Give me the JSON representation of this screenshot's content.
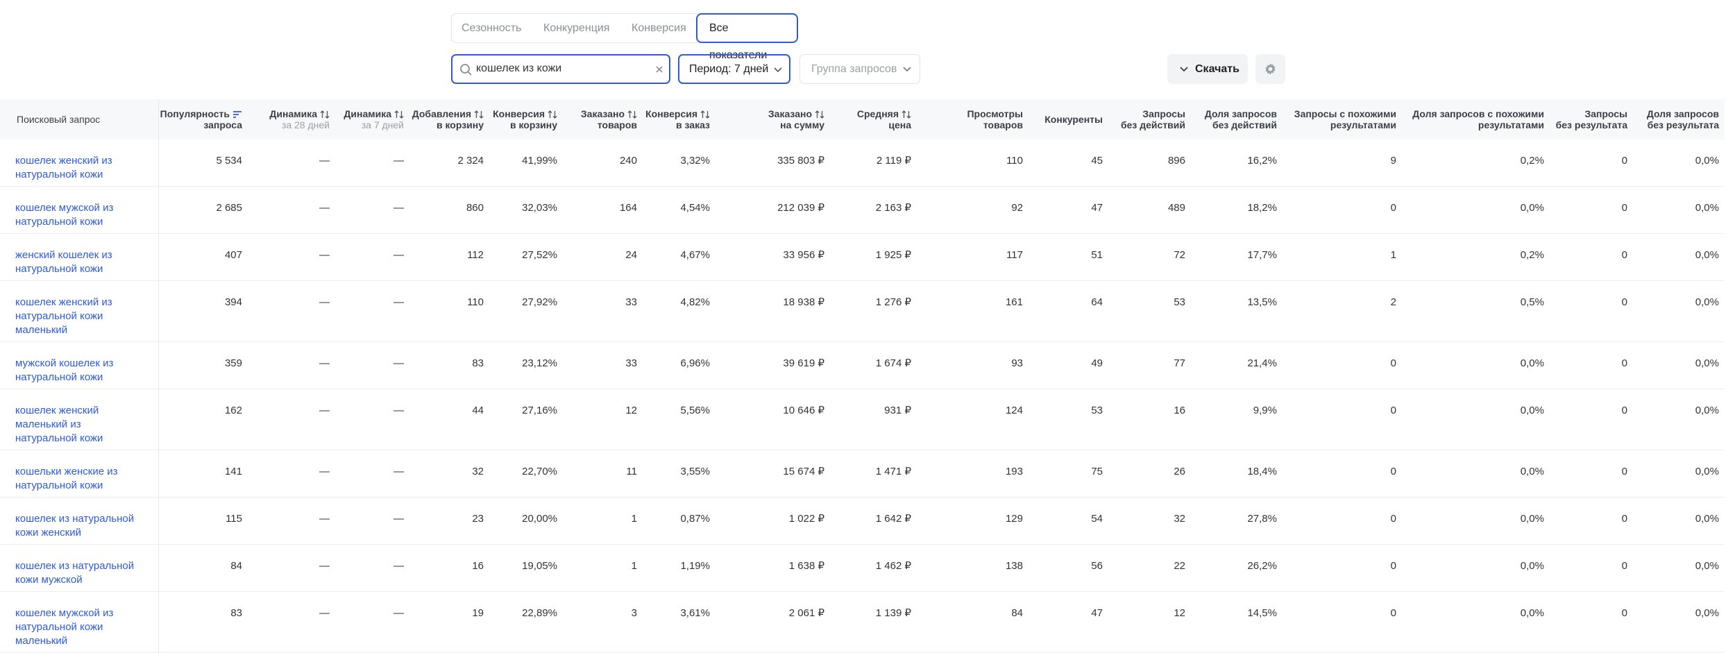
{
  "tabs": [
    "Сезонность",
    "Конкуренция",
    "Конверсия",
    "Все показатели"
  ],
  "active_tab": 3,
  "search": {
    "value": "кошелек из кожи"
  },
  "period": "Период: 7 дней",
  "group_placeholder": "Группа запросов",
  "download": "Скачать",
  "table": {
    "headers": [
      {
        "lines": [
          "Поисковый запрос"
        ]
      },
      {
        "lines": [
          "Популярность",
          "запроса"
        ]
      },
      {
        "lines": [
          "Динамика"
        ],
        "sub": "за 28 дней"
      },
      {
        "lines": [
          "Динамика"
        ],
        "sub": "за 7 дней"
      },
      {
        "lines": [
          "Добавления",
          "в корзину"
        ]
      },
      {
        "lines": [
          "Конверсия",
          "в корзину"
        ]
      },
      {
        "lines": [
          "Заказано",
          "товаров"
        ]
      },
      {
        "lines": [
          "Конверсия",
          "в заказ"
        ]
      },
      {
        "lines": [
          "Заказано",
          "на сумму"
        ]
      },
      {
        "lines": [
          "Средняя",
          "цена"
        ]
      },
      {
        "lines": [
          "Просмотры",
          "товаров"
        ]
      },
      {
        "lines": [
          "Конкуренты"
        ]
      },
      {
        "lines": [
          "Запросы",
          "без действий"
        ]
      },
      {
        "lines": [
          "Доля запросов",
          "без действий"
        ]
      },
      {
        "lines": [
          "Запросы с похожими",
          "результатами"
        ]
      },
      {
        "lines": [
          "Доля запросов с похожими",
          "результатами"
        ]
      },
      {
        "lines": [
          "Запросы",
          "без результата"
        ]
      },
      {
        "lines": [
          "Доля запросов",
          "без результата"
        ]
      }
    ],
    "rows": [
      [
        "кошелек женский из натуральной кожи",
        "5 534",
        "—",
        "—",
        "2 324",
        "41,99%",
        "240",
        "3,32%",
        "335 803 ₽",
        "2 119 ₽",
        "110",
        "45",
        "896",
        "16,2%",
        "9",
        "0,2%",
        "0",
        "0,0%"
      ],
      [
        "кошелек мужской из натуральной кожи",
        "2 685",
        "—",
        "—",
        "860",
        "32,03%",
        "164",
        "4,54%",
        "212 039 ₽",
        "2 163 ₽",
        "92",
        "47",
        "489",
        "18,2%",
        "0",
        "0,0%",
        "0",
        "0,0%"
      ],
      [
        "женский кошелек из натуральной кожи",
        "407",
        "—",
        "—",
        "112",
        "27,52%",
        "24",
        "4,67%",
        "33 956 ₽",
        "1 925 ₽",
        "117",
        "51",
        "72",
        "17,7%",
        "1",
        "0,2%",
        "0",
        "0,0%"
      ],
      [
        "кошелек женский из натуральной кожи маленький",
        "394",
        "—",
        "—",
        "110",
        "27,92%",
        "33",
        "4,82%",
        "18 938 ₽",
        "1 276 ₽",
        "161",
        "64",
        "53",
        "13,5%",
        "2",
        "0,5%",
        "0",
        "0,0%"
      ],
      [
        "мужской кошелек из натуральной кожи",
        "359",
        "—",
        "—",
        "83",
        "23,12%",
        "33",
        "6,96%",
        "39 619 ₽",
        "1 674 ₽",
        "93",
        "49",
        "77",
        "21,4%",
        "0",
        "0,0%",
        "0",
        "0,0%"
      ],
      [
        "кошелек женский маленький из натуральной кожи",
        "162",
        "—",
        "—",
        "44",
        "27,16%",
        "12",
        "5,56%",
        "10 646 ₽",
        "931 ₽",
        "124",
        "53",
        "16",
        "9,9%",
        "0",
        "0,0%",
        "0",
        "0,0%"
      ],
      [
        "кошельки женские из натуральной кожи",
        "141",
        "—",
        "—",
        "32",
        "22,70%",
        "11",
        "3,55%",
        "15 674 ₽",
        "1 471 ₽",
        "193",
        "75",
        "26",
        "18,4%",
        "0",
        "0,0%",
        "0",
        "0,0%"
      ],
      [
        "кошелек из натуральной кожи женский",
        "115",
        "—",
        "—",
        "23",
        "20,00%",
        "1",
        "0,87%",
        "1 022 ₽",
        "1 642 ₽",
        "129",
        "54",
        "32",
        "27,8%",
        "0",
        "0,0%",
        "0",
        "0,0%"
      ],
      [
        "кошелек из натуральной кожи мужской",
        "84",
        "—",
        "—",
        "16",
        "19,05%",
        "1",
        "1,19%",
        "1 638 ₽",
        "1 462 ₽",
        "138",
        "56",
        "22",
        "26,2%",
        "0",
        "0,0%",
        "0",
        "0,0%"
      ],
      [
        "кошелек мужской из натуральной кожи маленький",
        "83",
        "—",
        "—",
        "19",
        "22,89%",
        "3",
        "3,61%",
        "2 061 ₽",
        "1 139 ₽",
        "84",
        "47",
        "12",
        "14,5%",
        "0",
        "0,0%",
        "0",
        "0,0%"
      ]
    ]
  }
}
